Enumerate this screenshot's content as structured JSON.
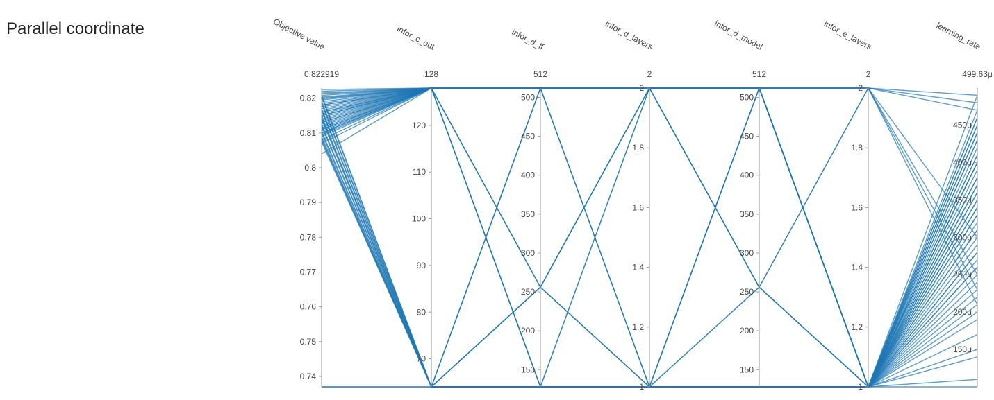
{
  "page": {
    "title": "Parallel coordinate"
  },
  "style": {
    "line_color": "#1f77b4",
    "axis_color": "#9a9a9a",
    "text_color": "#444444"
  },
  "chart_data": {
    "type": "parallel-coordinates",
    "title": "Parallel coordinate",
    "axes": [
      {
        "name": "Objective value",
        "top_label": "0.822919",
        "range": [
          0.737,
          0.822919
        ],
        "ticks": [
          {
            "v": 0.82,
            "t": "0.82"
          },
          {
            "v": 0.81,
            "t": "0.81"
          },
          {
            "v": 0.8,
            "t": "0.8"
          },
          {
            "v": 0.79,
            "t": "0.79"
          },
          {
            "v": 0.78,
            "t": "0.78"
          },
          {
            "v": 0.77,
            "t": "0.77"
          },
          {
            "v": 0.76,
            "t": "0.76"
          },
          {
            "v": 0.75,
            "t": "0.75"
          },
          {
            "v": 0.74,
            "t": "0.74"
          }
        ]
      },
      {
        "name": "infor_c_out",
        "top_label": "128",
        "range": [
          64,
          128
        ],
        "ticks": [
          {
            "v": 120,
            "t": "120"
          },
          {
            "v": 110,
            "t": "110"
          },
          {
            "v": 100,
            "t": "100"
          },
          {
            "v": 90,
            "t": "90"
          },
          {
            "v": 80,
            "t": "80"
          },
          {
            "v": 70,
            "t": "70"
          }
        ]
      },
      {
        "name": "infor_d_ff",
        "top_label": "512",
        "range": [
          128,
          512
        ],
        "ticks": [
          {
            "v": 500,
            "t": "500"
          },
          {
            "v": 450,
            "t": "450"
          },
          {
            "v": 400,
            "t": "400"
          },
          {
            "v": 350,
            "t": "350"
          },
          {
            "v": 300,
            "t": "300"
          },
          {
            "v": 250,
            "t": "250"
          },
          {
            "v": 200,
            "t": "200"
          },
          {
            "v": 150,
            "t": "150"
          }
        ]
      },
      {
        "name": "infor_d_layers",
        "top_label": "2",
        "range": [
          1,
          2
        ],
        "ticks": [
          {
            "v": 2,
            "t": "2"
          },
          {
            "v": 1.8,
            "t": "1.8"
          },
          {
            "v": 1.6,
            "t": "1.6"
          },
          {
            "v": 1.4,
            "t": "1.4"
          },
          {
            "v": 1.2,
            "t": "1.2"
          },
          {
            "v": 1,
            "t": "1"
          }
        ]
      },
      {
        "name": "infor_d_model",
        "top_label": "512",
        "range": [
          128,
          512
        ],
        "ticks": [
          {
            "v": 500,
            "t": "500"
          },
          {
            "v": 450,
            "t": "450"
          },
          {
            "v": 400,
            "t": "400"
          },
          {
            "v": 350,
            "t": "350"
          },
          {
            "v": 300,
            "t": "300"
          },
          {
            "v": 250,
            "t": "250"
          },
          {
            "v": 200,
            "t": "200"
          },
          {
            "v": 150,
            "t": "150"
          }
        ]
      },
      {
        "name": "infor_e_layers",
        "top_label": "2",
        "range": [
          1,
          2
        ],
        "ticks": [
          {
            "v": 2,
            "t": "2"
          },
          {
            "v": 1.8,
            "t": "1.8"
          },
          {
            "v": 1.6,
            "t": "1.6"
          },
          {
            "v": 1.4,
            "t": "1.4"
          },
          {
            "v": 1.2,
            "t": "1.2"
          },
          {
            "v": 1,
            "t": "1"
          }
        ]
      },
      {
        "name": "learning_rate",
        "top_label": "499.63μ",
        "range": [
          0.0001,
          0.00049963
        ],
        "ticks": [
          {
            "v": 0.00045,
            "t": "450μ"
          },
          {
            "v": 0.0004,
            "t": "400μ"
          },
          {
            "v": 0.00035,
            "t": "350μ"
          },
          {
            "v": 0.0003,
            "t": "300μ"
          },
          {
            "v": 0.00025,
            "t": "250μ"
          },
          {
            "v": 0.0002,
            "t": "200μ"
          },
          {
            "v": 0.00015,
            "t": "150μ"
          }
        ]
      }
    ],
    "trials": [
      [
        0.8225,
        128,
        512,
        2,
        512,
        2,
        0.00049
      ],
      [
        0.822,
        128,
        512,
        2,
        512,
        2,
        0.00048
      ],
      [
        0.8215,
        128,
        512,
        2,
        512,
        2,
        0.00047
      ],
      [
        0.8212,
        128,
        512,
        2,
        512,
        1,
        0.00046
      ],
      [
        0.8208,
        128,
        512,
        2,
        512,
        1,
        0.00045
      ],
      [
        0.8203,
        128,
        512,
        2,
        512,
        1,
        0.00044
      ],
      [
        0.8198,
        128,
        512,
        2,
        512,
        1,
        0.00043
      ],
      [
        0.8195,
        128,
        512,
        2,
        512,
        1,
        0.00042
      ],
      [
        0.819,
        128,
        512,
        2,
        512,
        1,
        0.00041
      ],
      [
        0.8185,
        128,
        512,
        2,
        512,
        1,
        0.0004
      ],
      [
        0.818,
        128,
        512,
        2,
        512,
        1,
        0.00039
      ],
      [
        0.8175,
        128,
        512,
        2,
        512,
        1,
        0.00038
      ],
      [
        0.817,
        128,
        512,
        2,
        512,
        1,
        0.00037
      ],
      [
        0.8165,
        128,
        512,
        2,
        512,
        1,
        0.00036
      ],
      [
        0.816,
        128,
        512,
        2,
        512,
        1,
        0.00035
      ],
      [
        0.8155,
        128,
        512,
        2,
        512,
        1,
        0.00034
      ],
      [
        0.815,
        128,
        512,
        2,
        512,
        1,
        0.00033
      ],
      [
        0.8145,
        128,
        512,
        2,
        512,
        1,
        0.00032
      ],
      [
        0.814,
        128,
        512,
        2,
        512,
        1,
        0.00031
      ],
      [
        0.8135,
        128,
        512,
        2,
        512,
        1,
        0.0003
      ],
      [
        0.813,
        128,
        512,
        2,
        512,
        1,
        0.00029
      ],
      [
        0.8125,
        128,
        512,
        2,
        512,
        1,
        0.00028
      ],
      [
        0.812,
        128,
        512,
        2,
        512,
        1,
        0.00027
      ],
      [
        0.8115,
        128,
        512,
        2,
        512,
        1,
        0.00026
      ],
      [
        0.811,
        128,
        512,
        2,
        512,
        1,
        0.00025
      ],
      [
        0.8105,
        128,
        512,
        2,
        512,
        1,
        0.00024
      ],
      [
        0.81,
        128,
        512,
        2,
        512,
        1,
        0.00023
      ],
      [
        0.8095,
        128,
        512,
        2,
        512,
        1,
        0.00022
      ],
      [
        0.809,
        128,
        512,
        2,
        512,
        1,
        0.00021
      ],
      [
        0.808,
        128,
        512,
        2,
        512,
        1,
        0.00019
      ],
      [
        0.807,
        128,
        512,
        2,
        512,
        1,
        0.00017
      ],
      [
        0.804,
        128,
        512,
        2,
        512,
        1,
        0.00014
      ],
      [
        0.82,
        128,
        128,
        1,
        128,
        1,
        0.00045
      ],
      [
        0.818,
        128,
        128,
        1,
        128,
        1,
        0.0004
      ],
      [
        0.816,
        128,
        128,
        1,
        128,
        1,
        0.00035
      ],
      [
        0.815,
        128,
        256,
        2,
        256,
        2,
        0.0003
      ],
      [
        0.813,
        128,
        256,
        2,
        256,
        2,
        0.00025
      ],
      [
        0.811,
        128,
        128,
        1,
        512,
        1,
        0.0002
      ],
      [
        0.81,
        128,
        256,
        1,
        512,
        1,
        0.00015
      ],
      [
        0.821,
        64,
        512,
        1,
        128,
        1,
        0.00047
      ],
      [
        0.819,
        64,
        512,
        1,
        128,
        1,
        0.00044
      ],
      [
        0.817,
        64,
        512,
        1,
        128,
        1,
        0.00041
      ],
      [
        0.815,
        64,
        256,
        2,
        256,
        1,
        0.00038
      ],
      [
        0.814,
        64,
        256,
        2,
        256,
        1,
        0.00036
      ],
      [
        0.812,
        64,
        128,
        2,
        512,
        1,
        0.00033
      ],
      [
        0.81,
        64,
        128,
        2,
        512,
        1,
        0.00031
      ],
      [
        0.809,
        64,
        128,
        1,
        256,
        1,
        0.00028
      ],
      [
        0.8085,
        64,
        128,
        1,
        256,
        1,
        0.00026
      ],
      [
        0.808,
        64,
        256,
        1,
        512,
        2,
        0.00023
      ],
      [
        0.8075,
        64,
        256,
        1,
        512,
        2,
        0.00021
      ],
      [
        0.8205,
        64,
        128,
        1,
        128,
        1,
        0.00049
      ],
      [
        0.8185,
        64,
        128,
        1,
        128,
        1,
        0.00046
      ],
      [
        0.8165,
        64,
        128,
        1,
        128,
        1,
        0.00043
      ],
      [
        0.8145,
        64,
        128,
        1,
        128,
        1,
        0.0004
      ],
      [
        0.8125,
        64,
        128,
        1,
        128,
        1,
        0.00037
      ],
      [
        0.8105,
        64,
        128,
        1,
        128,
        1,
        0.00034
      ],
      [
        0.737,
        64,
        128,
        1,
        128,
        1,
        0.00011
      ],
      [
        0.737,
        64,
        128,
        1,
        128,
        1,
        0.0001
      ]
    ]
  }
}
